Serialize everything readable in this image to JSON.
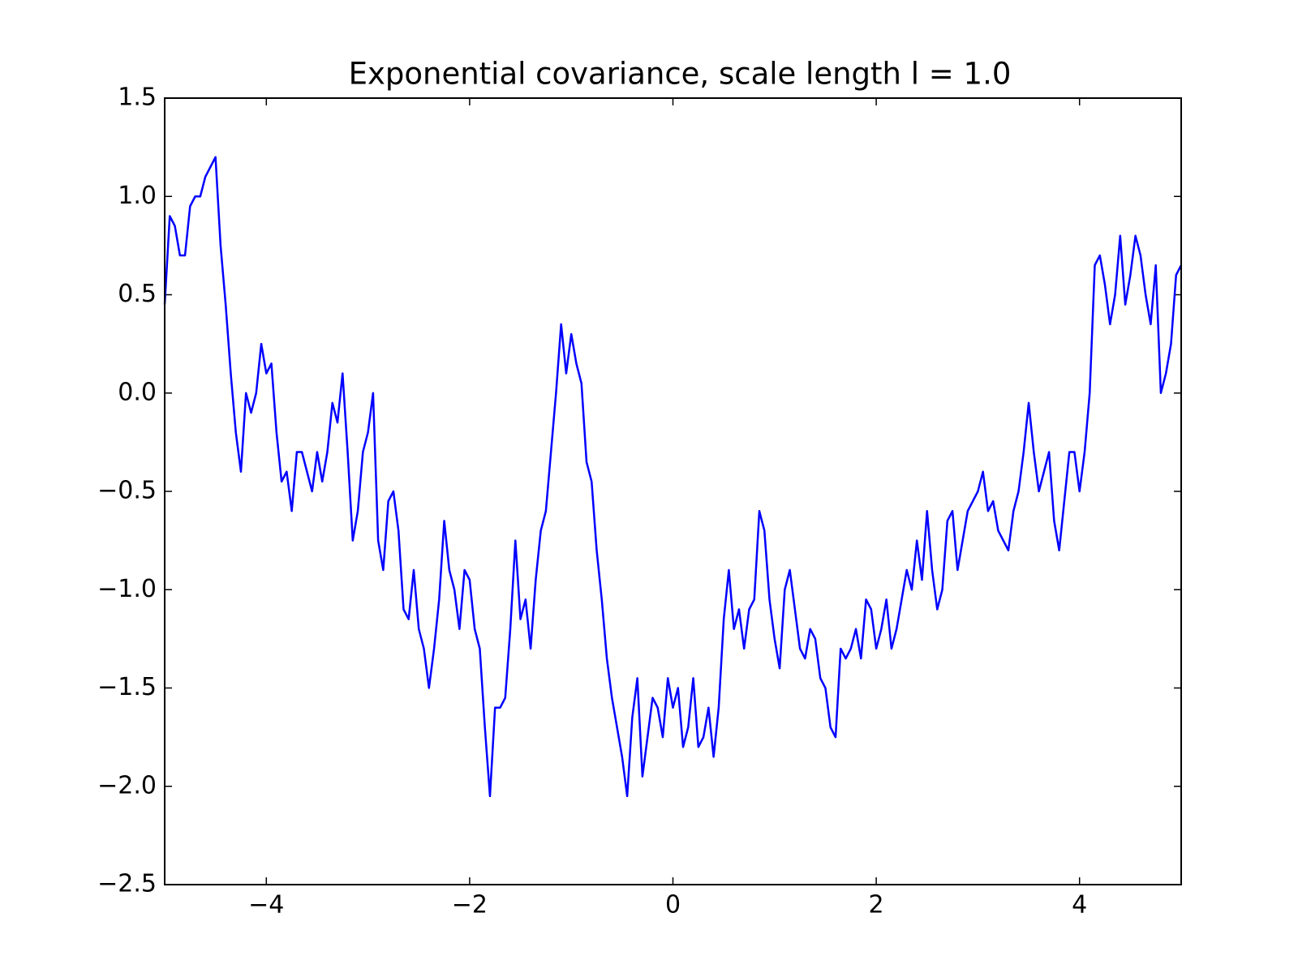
{
  "chart_data": {
    "type": "line",
    "title": "Exponential covariance, scale length l = 1.0",
    "x": [
      -5.0,
      -4.95,
      -4.9,
      -4.85,
      -4.8,
      -4.75,
      -4.7,
      -4.65,
      -4.6,
      -4.55,
      -4.5,
      -4.45,
      -4.4,
      -4.35,
      -4.3,
      -4.25,
      -4.2,
      -4.15,
      -4.1,
      -4.05,
      -4.0,
      -3.95,
      -3.9,
      -3.85,
      -3.8,
      -3.75,
      -3.7,
      -3.65,
      -3.6,
      -3.55,
      -3.5,
      -3.45,
      -3.4,
      -3.35,
      -3.3,
      -3.25,
      -3.2,
      -3.15,
      -3.1,
      -3.05,
      -3.0,
      -2.95,
      -2.9,
      -2.85,
      -2.8,
      -2.75,
      -2.7,
      -2.65,
      -2.6,
      -2.55,
      -2.5,
      -2.45,
      -2.4,
      -2.35,
      -2.3,
      -2.25,
      -2.2,
      -2.15,
      -2.1,
      -2.05,
      -2.0,
      -1.95,
      -1.9,
      -1.85,
      -1.8,
      -1.75,
      -1.7,
      -1.65,
      -1.6,
      -1.55,
      -1.5,
      -1.45,
      -1.4,
      -1.35,
      -1.3,
      -1.25,
      -1.2,
      -1.15,
      -1.1,
      -1.05,
      -1.0,
      -0.95,
      -0.9,
      -0.85,
      -0.8,
      -0.75,
      -0.7,
      -0.65,
      -0.6,
      -0.55,
      -0.5,
      -0.45,
      -0.4,
      -0.35,
      -0.3,
      -0.25,
      -0.2,
      -0.15,
      -0.1,
      -0.05,
      0.0,
      0.05,
      0.1,
      0.15,
      0.2,
      0.25,
      0.3,
      0.35,
      0.4,
      0.45,
      0.5,
      0.55,
      0.6,
      0.65,
      0.7,
      0.75,
      0.8,
      0.85,
      0.9,
      0.95,
      1.0,
      1.05,
      1.1,
      1.15,
      1.2,
      1.25,
      1.3,
      1.35,
      1.4,
      1.45,
      1.5,
      1.55,
      1.6,
      1.65,
      1.7,
      1.75,
      1.8,
      1.85,
      1.9,
      1.95,
      2.0,
      2.05,
      2.1,
      2.15,
      2.2,
      2.25,
      2.3,
      2.35,
      2.4,
      2.45,
      2.5,
      2.55,
      2.6,
      2.65,
      2.7,
      2.75,
      2.8,
      2.85,
      2.9,
      2.95,
      3.0,
      3.05,
      3.1,
      3.15,
      3.2,
      3.25,
      3.3,
      3.35,
      3.4,
      3.45,
      3.5,
      3.55,
      3.6,
      3.65,
      3.7,
      3.75,
      3.8,
      3.85,
      3.9,
      3.95,
      4.0,
      4.05,
      4.1,
      4.15,
      4.2,
      4.25,
      4.3,
      4.35,
      4.4,
      4.45,
      4.5,
      4.55,
      4.6,
      4.65,
      4.7,
      4.75,
      4.8,
      4.85,
      4.9,
      4.95,
      5.0
    ],
    "series": [
      {
        "color": "#0000ff",
        "values": [
          0.45,
          0.9,
          0.85,
          0.7,
          0.7,
          0.95,
          1.0,
          1.0,
          1.1,
          1.15,
          1.2,
          0.75,
          0.45,
          0.1,
          -0.2,
          -0.4,
          0.0,
          -0.1,
          0.0,
          0.25,
          0.1,
          0.15,
          -0.2,
          -0.45,
          -0.4,
          -0.6,
          -0.3,
          -0.3,
          -0.4,
          -0.5,
          -0.3,
          -0.45,
          -0.3,
          -0.05,
          -0.15,
          0.1,
          -0.3,
          -0.75,
          -0.6,
          -0.3,
          -0.2,
          0.0,
          -0.75,
          -0.9,
          -0.55,
          -0.5,
          -0.7,
          -1.1,
          -1.15,
          -0.9,
          -1.2,
          -1.3,
          -1.5,
          -1.3,
          -1.05,
          -0.65,
          -0.9,
          -1.0,
          -1.2,
          -0.9,
          -0.95,
          -1.2,
          -1.3,
          -1.7,
          -2.05,
          -1.6,
          -1.6,
          -1.55,
          -1.2,
          -0.75,
          -1.15,
          -1.05,
          -1.3,
          -0.95,
          -0.7,
          -0.6,
          -0.3,
          0.0,
          0.35,
          0.1,
          0.3,
          0.15,
          0.05,
          -0.35,
          -0.45,
          -0.8,
          -1.05,
          -1.35,
          -1.55,
          -1.7,
          -1.85,
          -2.05,
          -1.65,
          -1.45,
          -1.95,
          -1.75,
          -1.55,
          -1.6,
          -1.75,
          -1.45,
          -1.6,
          -1.5,
          -1.8,
          -1.7,
          -1.45,
          -1.8,
          -1.75,
          -1.6,
          -1.85,
          -1.6,
          -1.15,
          -0.9,
          -1.2,
          -1.1,
          -1.3,
          -1.1,
          -1.05,
          -0.6,
          -0.7,
          -1.05,
          -1.25,
          -1.4,
          -1.0,
          -0.9,
          -1.1,
          -1.3,
          -1.35,
          -1.2,
          -1.25,
          -1.45,
          -1.5,
          -1.7,
          -1.75,
          -1.3,
          -1.35,
          -1.3,
          -1.2,
          -1.35,
          -1.05,
          -1.1,
          -1.3,
          -1.2,
          -1.05,
          -1.3,
          -1.2,
          -1.05,
          -0.9,
          -1.0,
          -0.75,
          -0.95,
          -0.6,
          -0.9,
          -1.1,
          -1.0,
          -0.65,
          -0.6,
          -0.9,
          -0.75,
          -0.6,
          -0.55,
          -0.5,
          -0.4,
          -0.6,
          -0.55,
          -0.7,
          -0.75,
          -0.8,
          -0.6,
          -0.5,
          -0.3,
          -0.05,
          -0.3,
          -0.5,
          -0.4,
          -0.3,
          -0.65,
          -0.8,
          -0.55,
          -0.3,
          -0.3,
          -0.5,
          -0.3,
          0.0,
          0.65,
          0.7,
          0.55,
          0.35,
          0.5,
          0.8,
          0.45,
          0.6,
          0.8,
          0.7,
          0.5,
          0.35,
          0.65,
          0.0,
          0.1,
          0.25,
          0.6,
          0.65
        ]
      }
    ],
    "xlim": [
      -5,
      5
    ],
    "ylim": [
      -2.5,
      1.5
    ],
    "xticks": [
      {
        "value": -4,
        "label": "−4"
      },
      {
        "value": -2,
        "label": "−2"
      },
      0,
      2,
      4
    ],
    "yticks": [
      {
        "value": -2.5,
        "label": "−2.5"
      },
      {
        "value": -2.0,
        "label": "−2.0"
      },
      {
        "value": -1.5,
        "label": "−1.5"
      },
      {
        "value": -1.0,
        "label": "−1.0"
      },
      {
        "value": -0.5,
        "label": "−0.5"
      },
      {
        "value": 0.0,
        "label": "0.0"
      },
      0.5,
      {
        "value": 1.0,
        "label": "1.0"
      },
      1.5
    ]
  }
}
